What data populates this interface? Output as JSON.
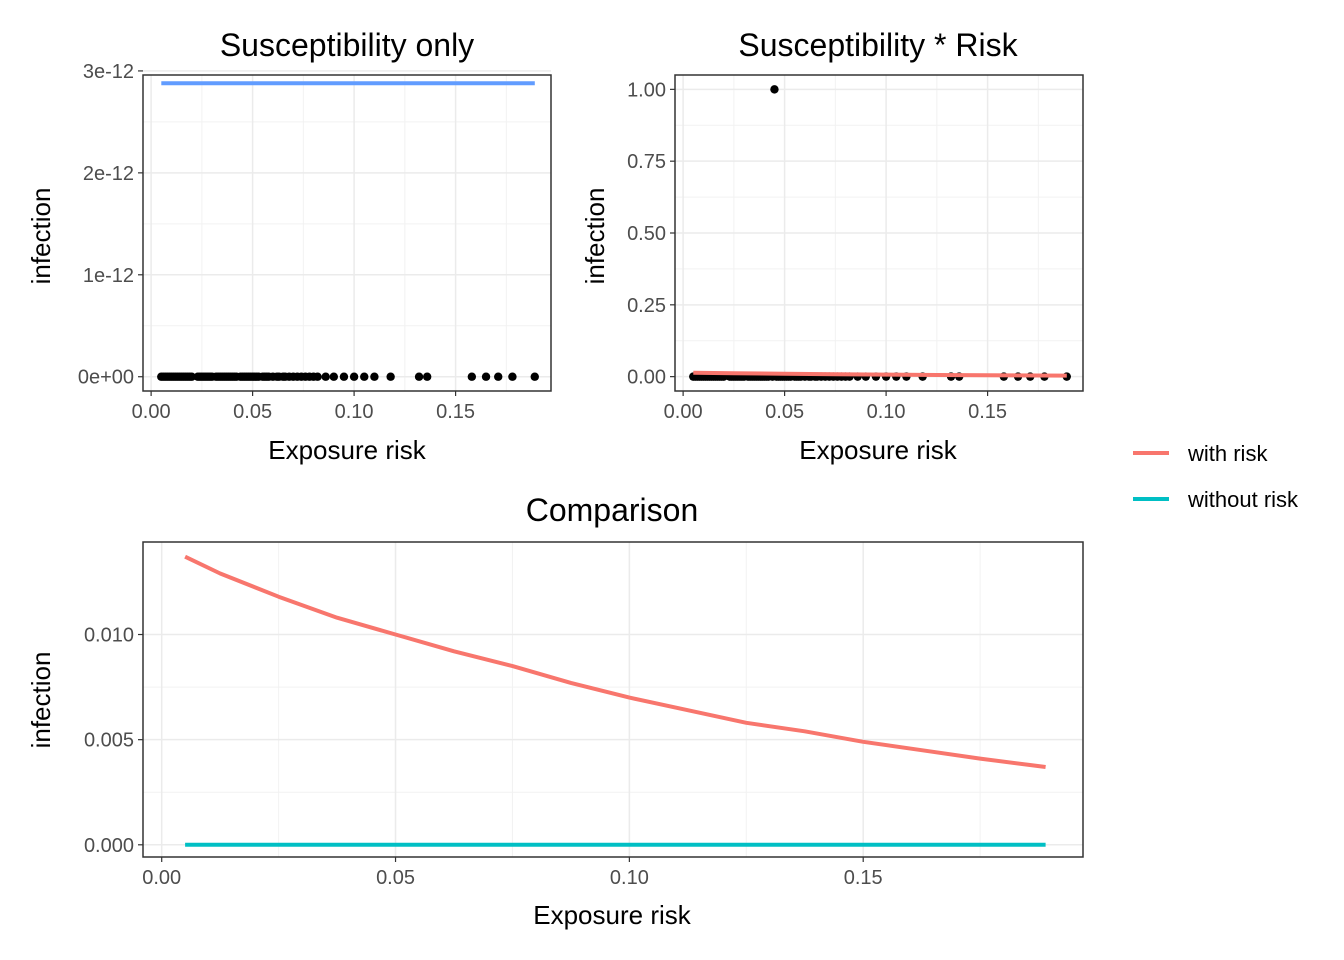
{
  "chart_data": [
    {
      "type": "scatter",
      "title": "Susceptibility only",
      "xlabel": "Exposure risk",
      "ylabel": "infection",
      "xlim": [
        -0.004,
        0.197
      ],
      "ylim": [
        -1.4e-13,
        2.96e-12
      ],
      "x_ticks": [
        0.0,
        0.05,
        0.1,
        0.15
      ],
      "x_tick_labels": [
        "0.00",
        "0.05",
        "0.10",
        "0.15"
      ],
      "y_ticks": [
        0,
        1e-12,
        2e-12,
        3e-12
      ],
      "y_tick_labels": [
        "0e+00",
        "1e-12",
        "2e-12",
        "3e-12"
      ],
      "grid": true,
      "points": {
        "x": [
          0.005,
          0.006,
          0.007,
          0.008,
          0.009,
          0.01,
          0.011,
          0.012,
          0.013,
          0.014,
          0.015,
          0.016,
          0.017,
          0.018,
          0.019,
          0.02,
          0.023,
          0.024,
          0.025,
          0.026,
          0.027,
          0.028,
          0.029,
          0.03,
          0.032,
          0.033,
          0.034,
          0.035,
          0.036,
          0.037,
          0.038,
          0.039,
          0.04,
          0.041,
          0.042,
          0.044,
          0.045,
          0.046,
          0.047,
          0.048,
          0.049,
          0.05,
          0.051,
          0.052,
          0.053,
          0.055,
          0.056,
          0.057,
          0.058,
          0.06,
          0.062,
          0.063,
          0.065,
          0.066,
          0.068,
          0.07,
          0.072,
          0.074,
          0.076,
          0.078,
          0.08,
          0.082,
          0.086,
          0.09,
          0.095,
          0.1,
          0.105,
          0.11,
          0.118,
          0.132,
          0.136,
          0.158,
          0.165,
          0.171,
          0.178,
          0.189
        ],
        "y": [
          0,
          0,
          0,
          0,
          0,
          0,
          0,
          0,
          0,
          0,
          0,
          0,
          0,
          0,
          0,
          0,
          0,
          0,
          0,
          0,
          0,
          0,
          0,
          0,
          0,
          0,
          0,
          0,
          0,
          0,
          0,
          0,
          0,
          0,
          0,
          0,
          0,
          0,
          0,
          0,
          0,
          0,
          0,
          0,
          0,
          0,
          0,
          0,
          0,
          0,
          0,
          0,
          0,
          0,
          0,
          0,
          0,
          0,
          0,
          0,
          0,
          0,
          0,
          0,
          0,
          0,
          0,
          0,
          0,
          0,
          0,
          0,
          0,
          0,
          0,
          0
        ]
      },
      "series": [
        {
          "x": [
            0.005,
            0.189
          ],
          "values": [
            2.88e-12,
            2.88e-12
          ],
          "color": "#619cff"
        }
      ]
    },
    {
      "type": "scatter",
      "title": "Susceptibility * Risk",
      "xlabel": "Exposure risk",
      "ylabel": "infection",
      "xlim": [
        -0.004,
        0.197
      ],
      "ylim": [
        -0.05,
        1.05
      ],
      "x_ticks": [
        0.0,
        0.05,
        0.1,
        0.15
      ],
      "x_tick_labels": [
        "0.00",
        "0.05",
        "0.10",
        "0.15"
      ],
      "y_ticks": [
        0,
        0.25,
        0.5,
        0.75,
        1.0
      ],
      "y_tick_labels": [
        "0.00",
        "0.25",
        "0.50",
        "0.75",
        "1.00"
      ],
      "grid": true,
      "points": {
        "x": [
          0.005,
          0.006,
          0.007,
          0.008,
          0.009,
          0.01,
          0.011,
          0.012,
          0.013,
          0.014,
          0.015,
          0.016,
          0.017,
          0.018,
          0.019,
          0.02,
          0.023,
          0.024,
          0.025,
          0.026,
          0.027,
          0.028,
          0.029,
          0.03,
          0.032,
          0.033,
          0.034,
          0.035,
          0.036,
          0.037,
          0.038,
          0.039,
          0.04,
          0.041,
          0.042,
          0.044,
          0.045,
          0.046,
          0.047,
          0.048,
          0.049,
          0.05,
          0.051,
          0.052,
          0.053,
          0.055,
          0.056,
          0.057,
          0.058,
          0.06,
          0.062,
          0.063,
          0.065,
          0.066,
          0.068,
          0.07,
          0.072,
          0.074,
          0.076,
          0.078,
          0.08,
          0.082,
          0.086,
          0.09,
          0.095,
          0.1,
          0.105,
          0.11,
          0.118,
          0.132,
          0.136,
          0.158,
          0.165,
          0.171,
          0.178,
          0.189
        ],
        "y": [
          0,
          0,
          0,
          0,
          0,
          0,
          0,
          0,
          0,
          0,
          0,
          0,
          0,
          0,
          0,
          0,
          0,
          0,
          0,
          0,
          0,
          0,
          0,
          0,
          0,
          0,
          0,
          0,
          0,
          0,
          0,
          0,
          0,
          0,
          0,
          0,
          1,
          0,
          0,
          0,
          0,
          0,
          0,
          0,
          0,
          0,
          0,
          0,
          0,
          0,
          0,
          0,
          0,
          0,
          0,
          0,
          0,
          0,
          0,
          0,
          0,
          0,
          0,
          0,
          0,
          0,
          0,
          0,
          0,
          0,
          0,
          0,
          0,
          0,
          0,
          0
        ]
      },
      "series": [
        {
          "x": [
            0.005,
            0.025,
            0.05,
            0.075,
            0.1,
            0.125,
            0.15,
            0.175,
            0.189
          ],
          "values": [
            0.0137,
            0.0118,
            0.01,
            0.0085,
            0.007,
            0.0058,
            0.0049,
            0.0041,
            0.0037
          ],
          "color": "#f8766d"
        }
      ]
    },
    {
      "type": "line",
      "title": "Comparison",
      "xlabel": "Exposure risk",
      "ylabel": "infection",
      "xlim": [
        -0.004,
        0.197
      ],
      "ylim": [
        -0.00058,
        0.0144
      ],
      "x_ticks": [
        0.0,
        0.05,
        0.1,
        0.15
      ],
      "x_tick_labels": [
        "0.00",
        "0.05",
        "0.10",
        "0.15"
      ],
      "y_ticks": [
        0,
        0.005,
        0.01
      ],
      "y_tick_labels": [
        "0.000",
        "0.005",
        "0.010"
      ],
      "grid": true,
      "legend_position": "right",
      "series": [
        {
          "name": "with risk",
          "color": "#f8766d",
          "x": [
            0.005,
            0.0125,
            0.025,
            0.0375,
            0.05,
            0.0625,
            0.075,
            0.0875,
            0.1,
            0.1125,
            0.125,
            0.1375,
            0.15,
            0.1625,
            0.175,
            0.189
          ],
          "values": [
            0.0137,
            0.0129,
            0.0118,
            0.0108,
            0.01,
            0.0092,
            0.0085,
            0.0077,
            0.007,
            0.0064,
            0.0058,
            0.0054,
            0.0049,
            0.0045,
            0.0041,
            0.0037
          ]
        },
        {
          "name": "without risk",
          "color": "#00bfc4",
          "x": [
            0.005,
            0.189
          ],
          "values": [
            0,
            0
          ]
        }
      ]
    }
  ],
  "legend": [
    {
      "label": "with risk",
      "color": "#f8766d"
    },
    {
      "label": "without risk",
      "color": "#00bfc4"
    }
  ]
}
